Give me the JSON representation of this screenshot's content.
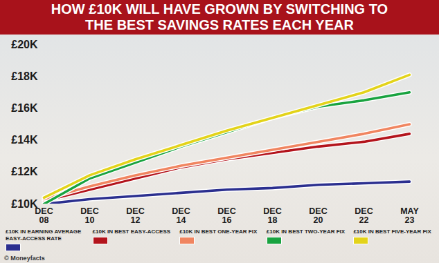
{
  "chart_data": {
    "type": "line",
    "title": "HOW £10K WILL HAVE GROWN BY SWITCHING TO THE BEST SAVINGS RATES EACH YEAR",
    "source": "© Moneyfacts",
    "categories": [
      "DEC 08",
      "DEC 10",
      "DEC 12",
      "DEC 14",
      "DEC 16",
      "DEC 18",
      "DEC 20",
      "DEC 22",
      "MAY 23"
    ],
    "ylim": [
      10,
      20
    ],
    "yticks": [
      {
        "value": 10,
        "label": "£10K"
      },
      {
        "value": 12,
        "label": "£12K"
      },
      {
        "value": 14,
        "label": "£14K"
      },
      {
        "value": 16,
        "label": "£16K"
      },
      {
        "value": 18,
        "label": "£18K"
      },
      {
        "value": 20,
        "label": "£20K"
      }
    ],
    "grid": false,
    "legend": "bottom",
    "series": [
      {
        "name": "£10K IN EARNING AVERAGE EASY-ACCESS RATE",
        "color": "#2b2f8f",
        "values": [
          10.0,
          10.3,
          10.5,
          10.7,
          10.9,
          11.0,
          11.2,
          11.3,
          11.4
        ]
      },
      {
        "name": "£10K IN BEST EASY-ACCESS",
        "color": "#b3141c",
        "values": [
          10.2,
          10.9,
          11.6,
          12.3,
          12.8,
          13.2,
          13.6,
          13.9,
          14.4
        ]
      },
      {
        "name": "£10K IN BEST ONE-YEAR FIX",
        "color": "#f08560",
        "values": [
          10.3,
          11.1,
          11.8,
          12.4,
          12.9,
          13.4,
          13.9,
          14.4,
          15.0
        ]
      },
      {
        "name": "£10K IN BEST TWO-YEAR FIX",
        "color": "#19a340",
        "values": [
          10.0,
          11.6,
          12.6,
          13.6,
          14.5,
          15.4,
          16.1,
          16.5,
          17.0
        ]
      },
      {
        "name": "£10K IN BEST FIVE-YEAR FIX",
        "color": "#e3d31a",
        "values": [
          10.4,
          11.8,
          12.8,
          13.7,
          14.6,
          15.4,
          16.2,
          17.0,
          18.1
        ]
      }
    ]
  }
}
